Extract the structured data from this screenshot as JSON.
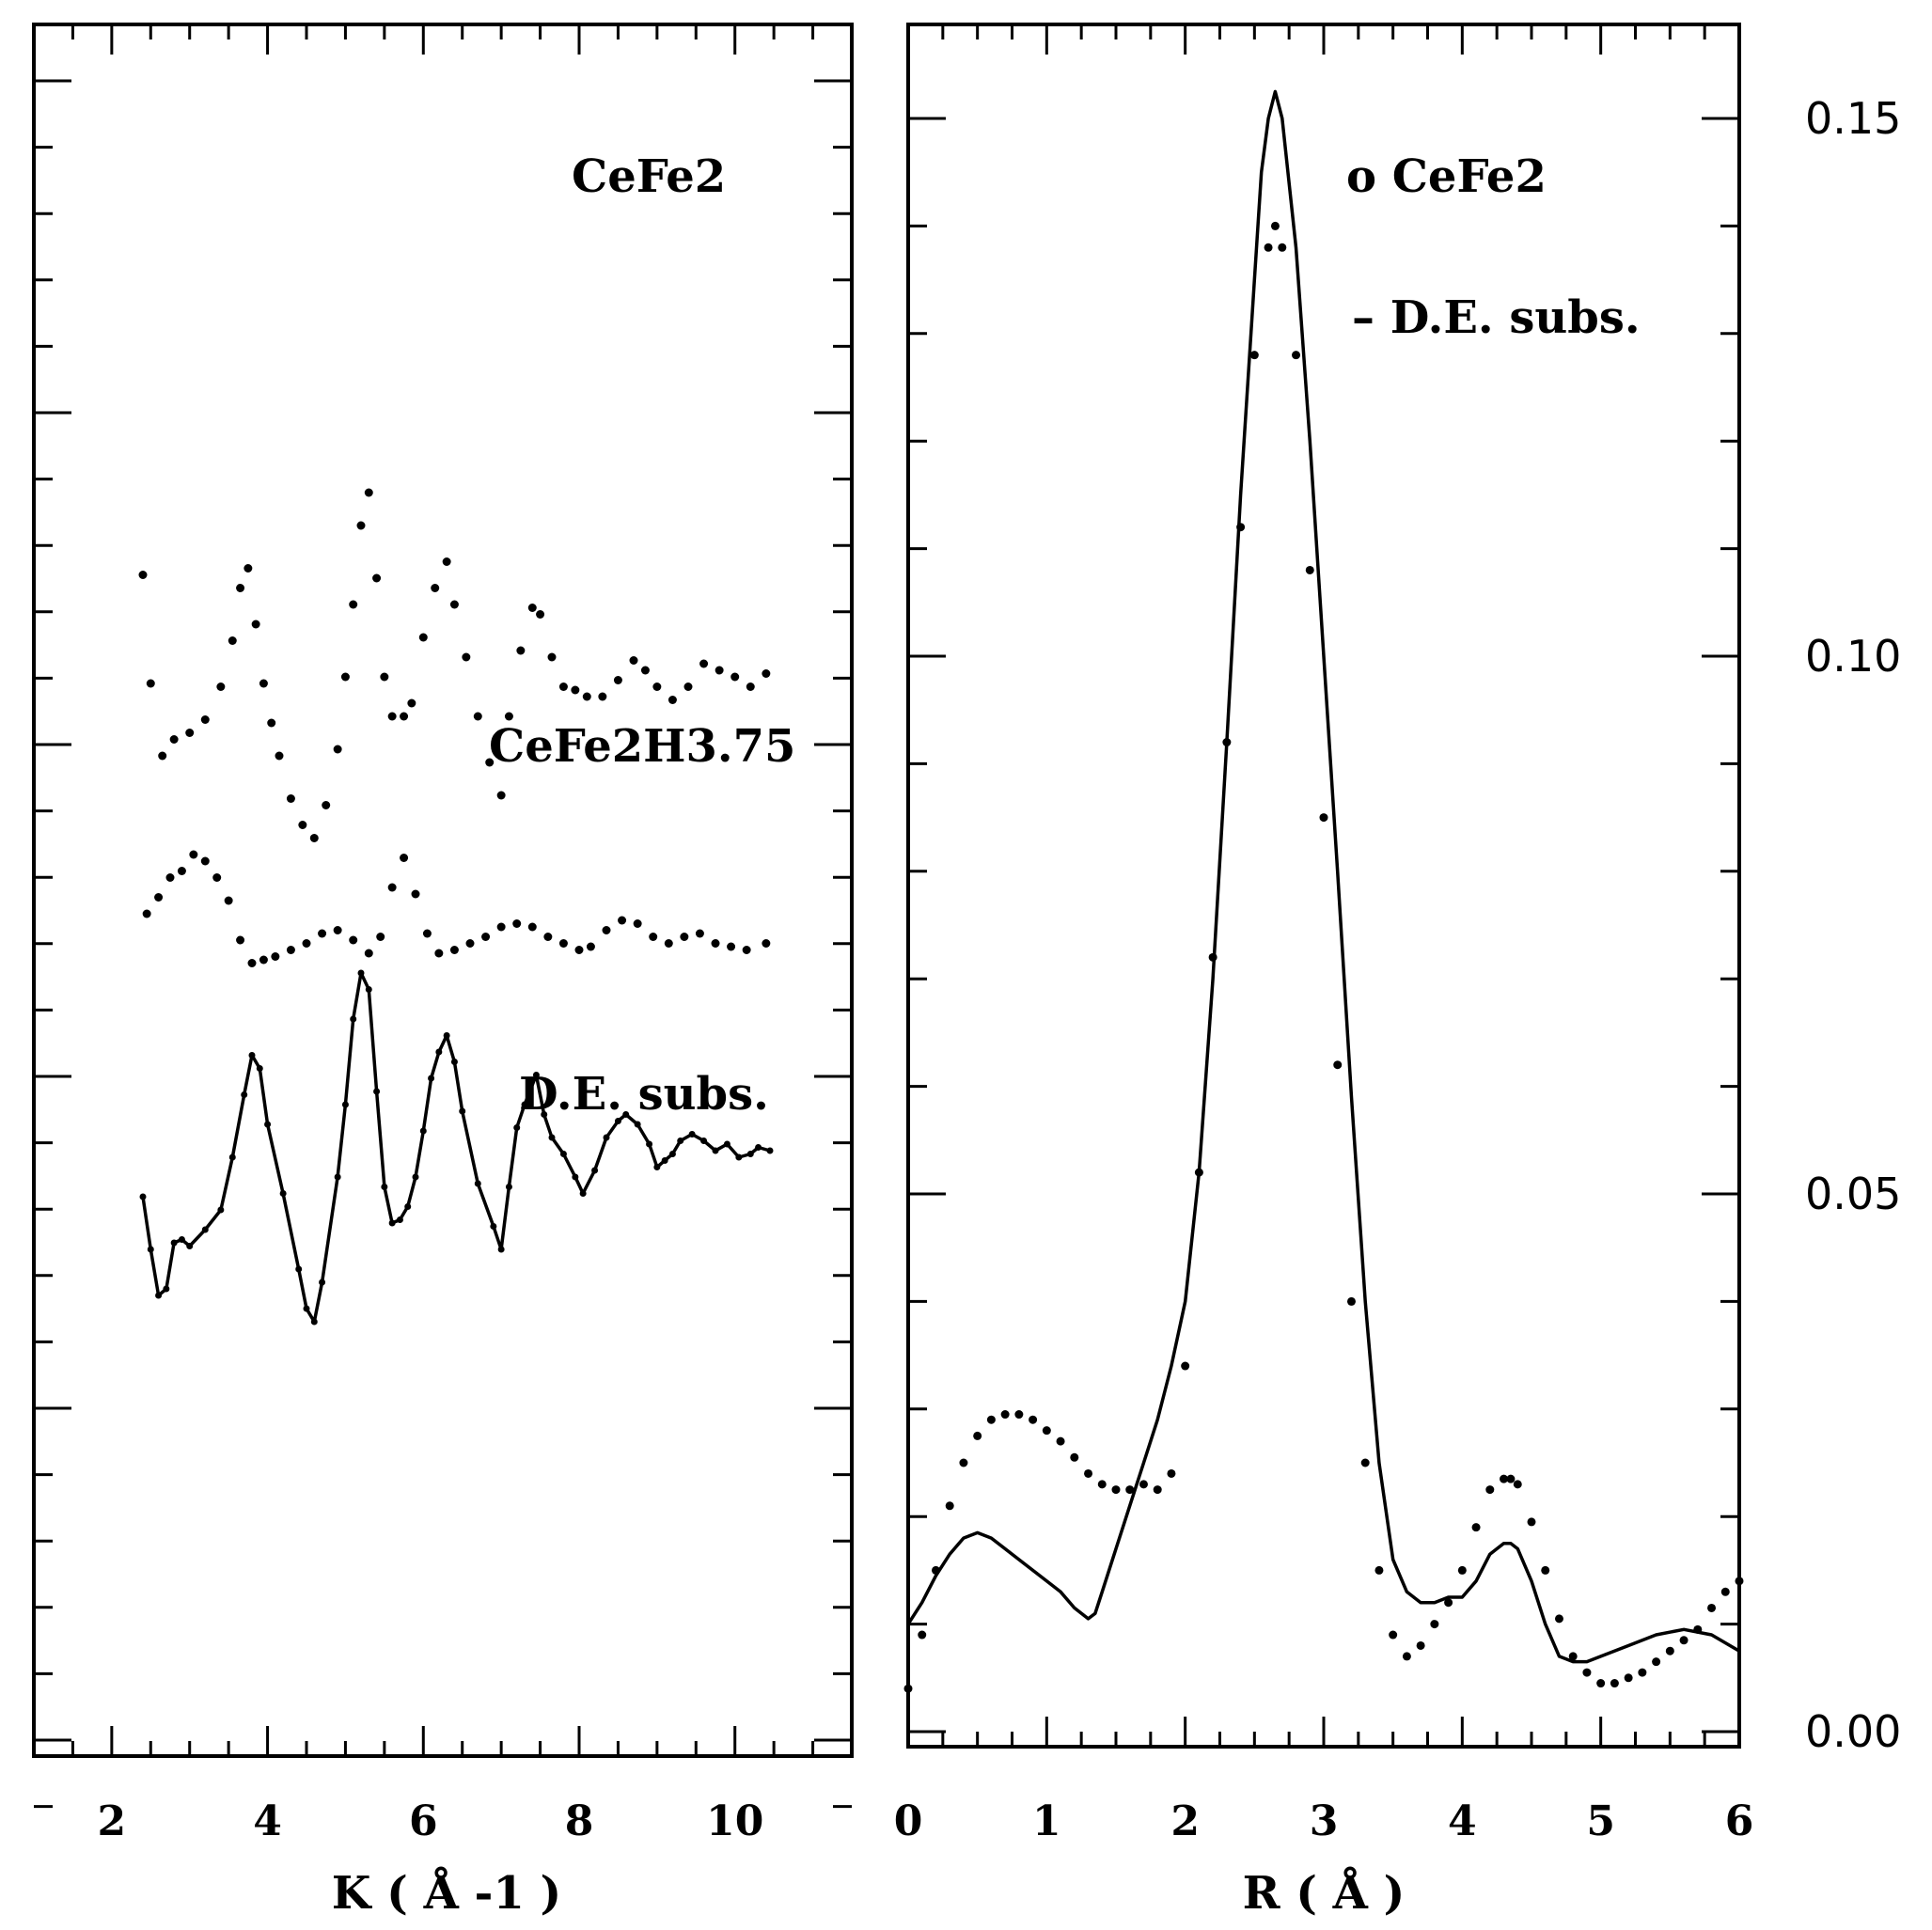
{
  "chart_data": [
    {
      "type": "line",
      "panel": "left",
      "xlabel": "K ( Å -1 )",
      "ylabel": "",
      "xlim": [
        1,
        11.5
      ],
      "x_ticks": [
        "2",
        "4",
        "6",
        "8",
        "10"
      ],
      "grid": false,
      "annotations": [
        "CeFe2",
        "CeFe2H3.75",
        "D.E. subs."
      ],
      "series": [
        {
          "name": "CeFe2",
          "style": "dots",
          "x": [
            2.4,
            2.5,
            2.65,
            2.8,
            3.0,
            3.2,
            3.4,
            3.55,
            3.65,
            3.75,
            3.85,
            3.95,
            4.05,
            4.15,
            4.3,
            4.45,
            4.6,
            4.75,
            4.9,
            5.0,
            5.1,
            5.2,
            5.3,
            5.4,
            5.5,
            5.6,
            5.75,
            5.85,
            6.0,
            6.15,
            6.3,
            6.4,
            6.55,
            6.7,
            6.85,
            7.0,
            7.1,
            7.25,
            7.4,
            7.5,
            7.65,
            7.8,
            7.95,
            8.1,
            8.3,
            8.5,
            8.7,
            8.85,
            9.0,
            9.2,
            9.4,
            9.6,
            9.8,
            10.0,
            10.2,
            10.4
          ],
          "y": [
            7.05,
            5.4,
            4.3,
            4.55,
            4.65,
            4.85,
            5.35,
            6.05,
            6.85,
            7.15,
            6.3,
            5.4,
            4.8,
            4.3,
            3.65,
            3.25,
            3.05,
            3.55,
            4.4,
            5.5,
            6.6,
            7.8,
            8.3,
            7.0,
            5.5,
            4.9,
            4.9,
            5.1,
            6.1,
            6.85,
            7.25,
            6.6,
            5.8,
            4.9,
            4.2,
            3.7,
            4.9,
            5.9,
            6.55,
            6.45,
            5.8,
            5.35,
            5.3,
            5.2,
            5.2,
            5.45,
            5.75,
            5.6,
            5.35,
            5.15,
            5.35,
            5.7,
            5.6,
            5.5,
            5.35,
            5.55
          ]
        },
        {
          "name": "CeFe2H3.75",
          "style": "dots",
          "x": [
            2.45,
            2.6,
            2.75,
            2.9,
            3.05,
            3.2,
            3.35,
            3.5,
            3.65,
            3.8,
            3.95,
            4.1,
            4.3,
            4.5,
            4.7,
            4.9,
            5.1,
            5.3,
            5.45,
            5.6,
            5.75,
            5.9,
            6.05,
            6.2,
            6.4,
            6.6,
            6.8,
            7.0,
            7.2,
            7.4,
            7.6,
            7.8,
            8.0,
            8.15,
            8.35,
            8.55,
            8.75,
            8.95,
            9.15,
            9.35,
            9.55,
            9.75,
            9.95,
            10.15,
            10.4
          ],
          "y": [
            1.9,
            2.15,
            2.45,
            2.55,
            2.8,
            2.7,
            2.45,
            2.1,
            1.5,
            1.15,
            1.2,
            1.25,
            1.35,
            1.45,
            1.6,
            1.65,
            1.5,
            1.3,
            1.55,
            2.3,
            2.75,
            2.2,
            1.6,
            1.3,
            1.35,
            1.45,
            1.55,
            1.7,
            1.75,
            1.7,
            1.55,
            1.45,
            1.35,
            1.4,
            1.65,
            1.8,
            1.75,
            1.55,
            1.45,
            1.55,
            1.6,
            1.45,
            1.4,
            1.35,
            1.45
          ]
        },
        {
          "name": "D.E. subs.",
          "style": "line",
          "x": [
            2.4,
            2.5,
            2.6,
            2.7,
            2.8,
            2.9,
            3.0,
            3.2,
            3.4,
            3.55,
            3.7,
            3.8,
            3.9,
            4.0,
            4.2,
            4.4,
            4.5,
            4.6,
            4.7,
            4.9,
            5.0,
            5.1,
            5.2,
            5.3,
            5.4,
            5.5,
            5.6,
            5.7,
            5.8,
            5.9,
            6.0,
            6.1,
            6.2,
            6.3,
            6.4,
            6.5,
            6.7,
            6.9,
            7.0,
            7.1,
            7.2,
            7.3,
            7.45,
            7.55,
            7.65,
            7.8,
            7.95,
            8.05,
            8.2,
            8.35,
            8.5,
            8.6,
            8.75,
            8.9,
            9.0,
            9.1,
            9.2,
            9.3,
            9.45,
            9.6,
            9.75,
            9.9,
            10.05,
            10.2,
            10.3,
            10.45
          ],
          "y": [
            -2.4,
            -3.2,
            -3.9,
            -3.8,
            -3.1,
            -3.05,
            -3.15,
            -2.9,
            -2.6,
            -1.8,
            -0.85,
            -0.25,
            -0.45,
            -1.3,
            -2.35,
            -3.5,
            -4.1,
            -4.3,
            -3.7,
            -2.1,
            -1.0,
            0.3,
            1.0,
            0.75,
            -0.8,
            -2.25,
            -2.8,
            -2.75,
            -2.55,
            -2.1,
            -1.4,
            -0.6,
            -0.2,
            0.05,
            -0.35,
            -1.1,
            -2.2,
            -2.85,
            -3.2,
            -2.25,
            -1.35,
            -1.0,
            -0.55,
            -1.15,
            -1.5,
            -1.75,
            -2.1,
            -2.35,
            -2.0,
            -1.5,
            -1.25,
            -1.15,
            -1.3,
            -1.6,
            -1.95,
            -1.85,
            -1.75,
            -1.55,
            -1.45,
            -1.55,
            -1.7,
            -1.6,
            -1.8,
            -1.75,
            -1.65,
            -1.7
          ]
        }
      ]
    },
    {
      "type": "line",
      "panel": "right",
      "xlabel": "R ( Å )",
      "ylabel": "",
      "xlim": [
        0,
        6
      ],
      "ylim": [
        0,
        0.16
      ],
      "x_ticks": [
        "0",
        "1",
        "2",
        "3",
        "4",
        "5",
        "6"
      ],
      "y_ticks": [
        "0.00",
        "0.05",
        "0.10",
        "0.15"
      ],
      "grid": false,
      "legend": "top-right",
      "legend_entries": [
        "o CeFe2",
        "– D.E. subs."
      ],
      "series": [
        {
          "name": "CeFe2",
          "style": "dots",
          "x": [
            0.0,
            0.1,
            0.2,
            0.3,
            0.4,
            0.5,
            0.6,
            0.7,
            0.8,
            0.9,
            1.0,
            1.1,
            1.2,
            1.3,
            1.4,
            1.5,
            1.6,
            1.7,
            1.8,
            1.9,
            2.0,
            2.1,
            2.2,
            2.3,
            2.4,
            2.5,
            2.6,
            2.65,
            2.7,
            2.8,
            2.9,
            3.0,
            3.1,
            3.2,
            3.3,
            3.4,
            3.5,
            3.6,
            3.7,
            3.8,
            3.9,
            4.0,
            4.1,
            4.2,
            4.3,
            4.35,
            4.4,
            4.5,
            4.6,
            4.7,
            4.8,
            4.9,
            5.0,
            5.1,
            5.2,
            5.3,
            5.4,
            5.5,
            5.6,
            5.7,
            5.8,
            5.9,
            6.0
          ],
          "y": [
            0.004,
            0.009,
            0.015,
            0.021,
            0.025,
            0.0275,
            0.029,
            0.0295,
            0.0295,
            0.029,
            0.028,
            0.027,
            0.0255,
            0.024,
            0.023,
            0.0225,
            0.0225,
            0.023,
            0.0225,
            0.024,
            0.034,
            0.052,
            0.072,
            0.092,
            0.112,
            0.128,
            0.138,
            0.14,
            0.138,
            0.128,
            0.108,
            0.085,
            0.062,
            0.04,
            0.025,
            0.015,
            0.009,
            0.007,
            0.008,
            0.01,
            0.012,
            0.015,
            0.019,
            0.0225,
            0.0235,
            0.0235,
            0.023,
            0.0195,
            0.015,
            0.0105,
            0.007,
            0.0055,
            0.0045,
            0.0045,
            0.005,
            0.0055,
            0.0065,
            0.0075,
            0.0085,
            0.0095,
            0.0115,
            0.013,
            0.014
          ]
        },
        {
          "name": "D.E. subs.",
          "style": "line",
          "x": [
            0.0,
            0.1,
            0.2,
            0.3,
            0.4,
            0.5,
            0.6,
            0.7,
            0.8,
            0.9,
            1.0,
            1.1,
            1.2,
            1.3,
            1.35,
            1.4,
            1.5,
            1.6,
            1.7,
            1.8,
            1.9,
            2.0,
            2.1,
            2.2,
            2.3,
            2.4,
            2.5,
            2.55,
            2.6,
            2.65,
            2.7,
            2.8,
            2.9,
            3.0,
            3.1,
            3.2,
            3.3,
            3.4,
            3.5,
            3.6,
            3.7,
            3.8,
            3.9,
            4.0,
            4.1,
            4.2,
            4.3,
            4.35,
            4.4,
            4.5,
            4.6,
            4.7,
            4.8,
            4.9,
            5.0,
            5.2,
            5.4,
            5.6,
            5.8,
            6.0
          ],
          "y": [
            0.01,
            0.012,
            0.0145,
            0.0165,
            0.018,
            0.0185,
            0.018,
            0.017,
            0.016,
            0.015,
            0.014,
            0.013,
            0.0115,
            0.0105,
            0.011,
            0.013,
            0.017,
            0.021,
            0.025,
            0.029,
            0.034,
            0.04,
            0.052,
            0.07,
            0.092,
            0.115,
            0.135,
            0.145,
            0.15,
            0.1525,
            0.15,
            0.138,
            0.12,
            0.1,
            0.08,
            0.059,
            0.04,
            0.025,
            0.016,
            0.013,
            0.012,
            0.012,
            0.0125,
            0.0125,
            0.014,
            0.0165,
            0.0175,
            0.0175,
            0.017,
            0.014,
            0.01,
            0.007,
            0.0065,
            0.0065,
            0.007,
            0.008,
            0.009,
            0.0095,
            0.009,
            0.0075
          ]
        }
      ]
    }
  ]
}
